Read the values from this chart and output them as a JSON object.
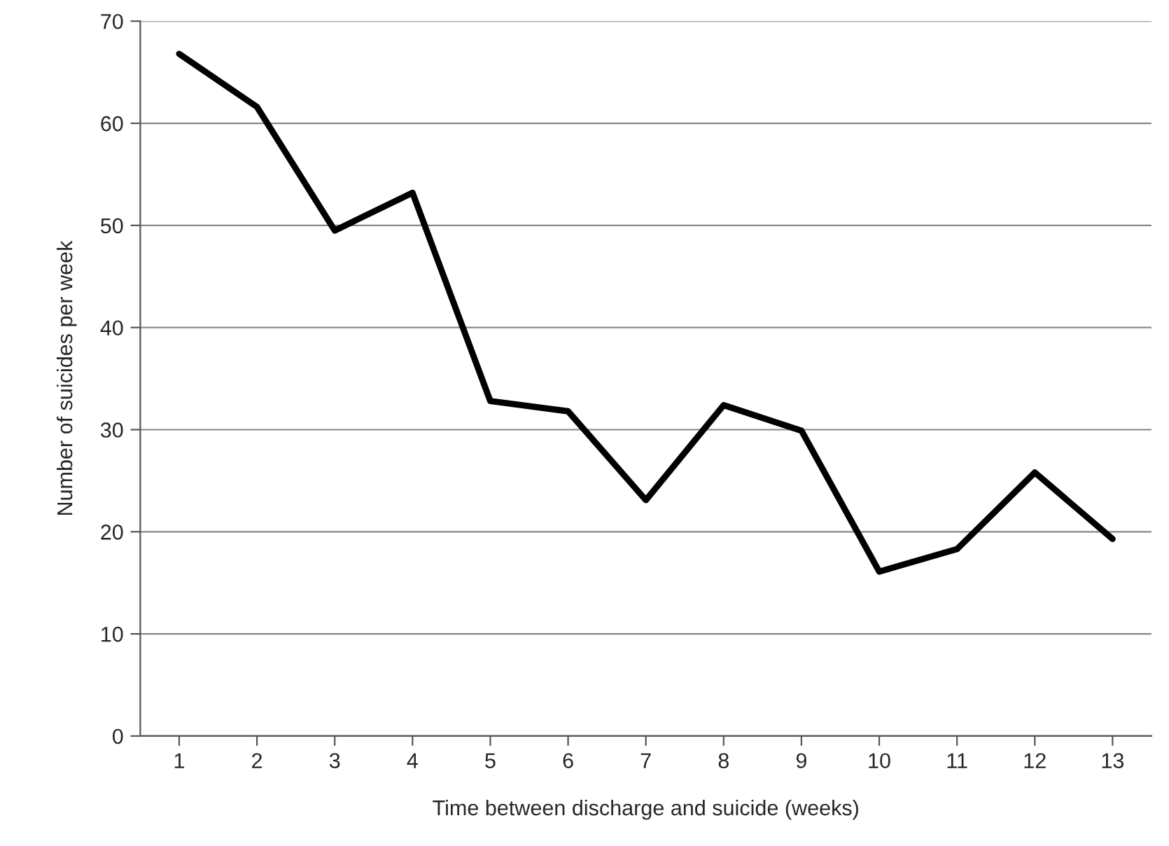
{
  "chart_data": {
    "type": "line",
    "xlabel": "Time between discharge and suicide (weeks)",
    "ylabel": "Number of suicides per week",
    "categories": [
      "1",
      "2",
      "3",
      "4",
      "5",
      "6",
      "7",
      "8",
      "9",
      "10",
      "11",
      "12",
      "13"
    ],
    "series": [
      {
        "color": "#000000",
        "values": [
          66.8,
          61.6,
          49.5,
          53.2,
          32.8,
          31.8,
          23.1,
          32.4,
          29.9,
          16.1,
          18.3,
          25.8,
          19.3
        ]
      }
    ],
    "ylim": [
      0,
      70
    ],
    "yticks": [
      0,
      10,
      20,
      30,
      40,
      50,
      60,
      70
    ],
    "grid": "y",
    "marker": "none",
    "line_style": "solid"
  }
}
